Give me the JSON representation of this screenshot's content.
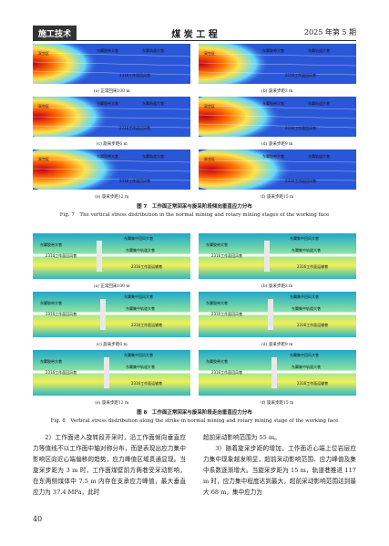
{
  "header": {
    "section": "施工技术",
    "journal": "煤 炭 工 程",
    "issue": "2025 年第 5 期"
  },
  "figures": [
    {
      "panel_labels": [
        "采空区",
        "东翼胶带大巷",
        "东翼轨道大巷",
        "2316工作面回风巷"
      ],
      "subcaptions": [
        "(a) 正常回采100 m",
        "(b) 旋采步距3 m",
        "(c) 旋采步距6 m",
        "(d) 旋采步距9 m",
        "(e) 旋采步距12 m",
        "(f) 旋采步距15 m"
      ],
      "caption_cn": "图 7　工作面正常回采与旋采阶段倾向垂直应力分布",
      "caption_en": "Fig. 7　The vertical stress distribution in the normal mining and rotary mining stages of the working face"
    },
    {
      "panel_labels": [
        "东翼集中回风大巷",
        "东翼胶带大巷",
        "东翼集中轨道大巷",
        "2316工作面回风巷",
        "2316工作面运输巷"
      ],
      "subcaptions": [
        "(a) 正常回采100 m",
        "(b) 旋采步距3 m",
        "(c) 旋采步距6 m",
        "(d) 旋采步距9 m",
        "(e) 旋采步距12 m",
        "(f) 旋采步距15 m"
      ],
      "caption_cn": "图 8　工作面正常回采与旋采阶段走向垂直应力分布",
      "caption_en": "Fig. 8　Vertical stress distribution along the strike in normal mining and rotary mining stage of the working face"
    }
  ],
  "body": {
    "left": [
      "2）工作面进入旋转段开采时，沿工作面倾向垂直应力等值线不以工作面中轴对称分布，而是表现出应力集中影响区向近心端偏移的趋势，应力峰值区域贯通显现。当旋采步距为 3 m 时，工作面煤壁前方两巷受采动影响，在东两侧煤体中 7.5 m 内存在支承应力峰值，最大垂直应力为 37.4 MPa，此时"
    ],
    "right": [
      "超前采动影响范围为 55 m。",
      "3）随着旋采步距的增加，工作面近心端上位岩层应力集中现象越发明显，超前采动影响范围、应力峰值及集中系数逐渐增大。当旋采步距为 15 m，轨道巷推进 117 m 时，应力集中程度达到最大，超前采动影响范围达到最大 68 m，集中应力为"
    ]
  },
  "page_number": "40"
}
